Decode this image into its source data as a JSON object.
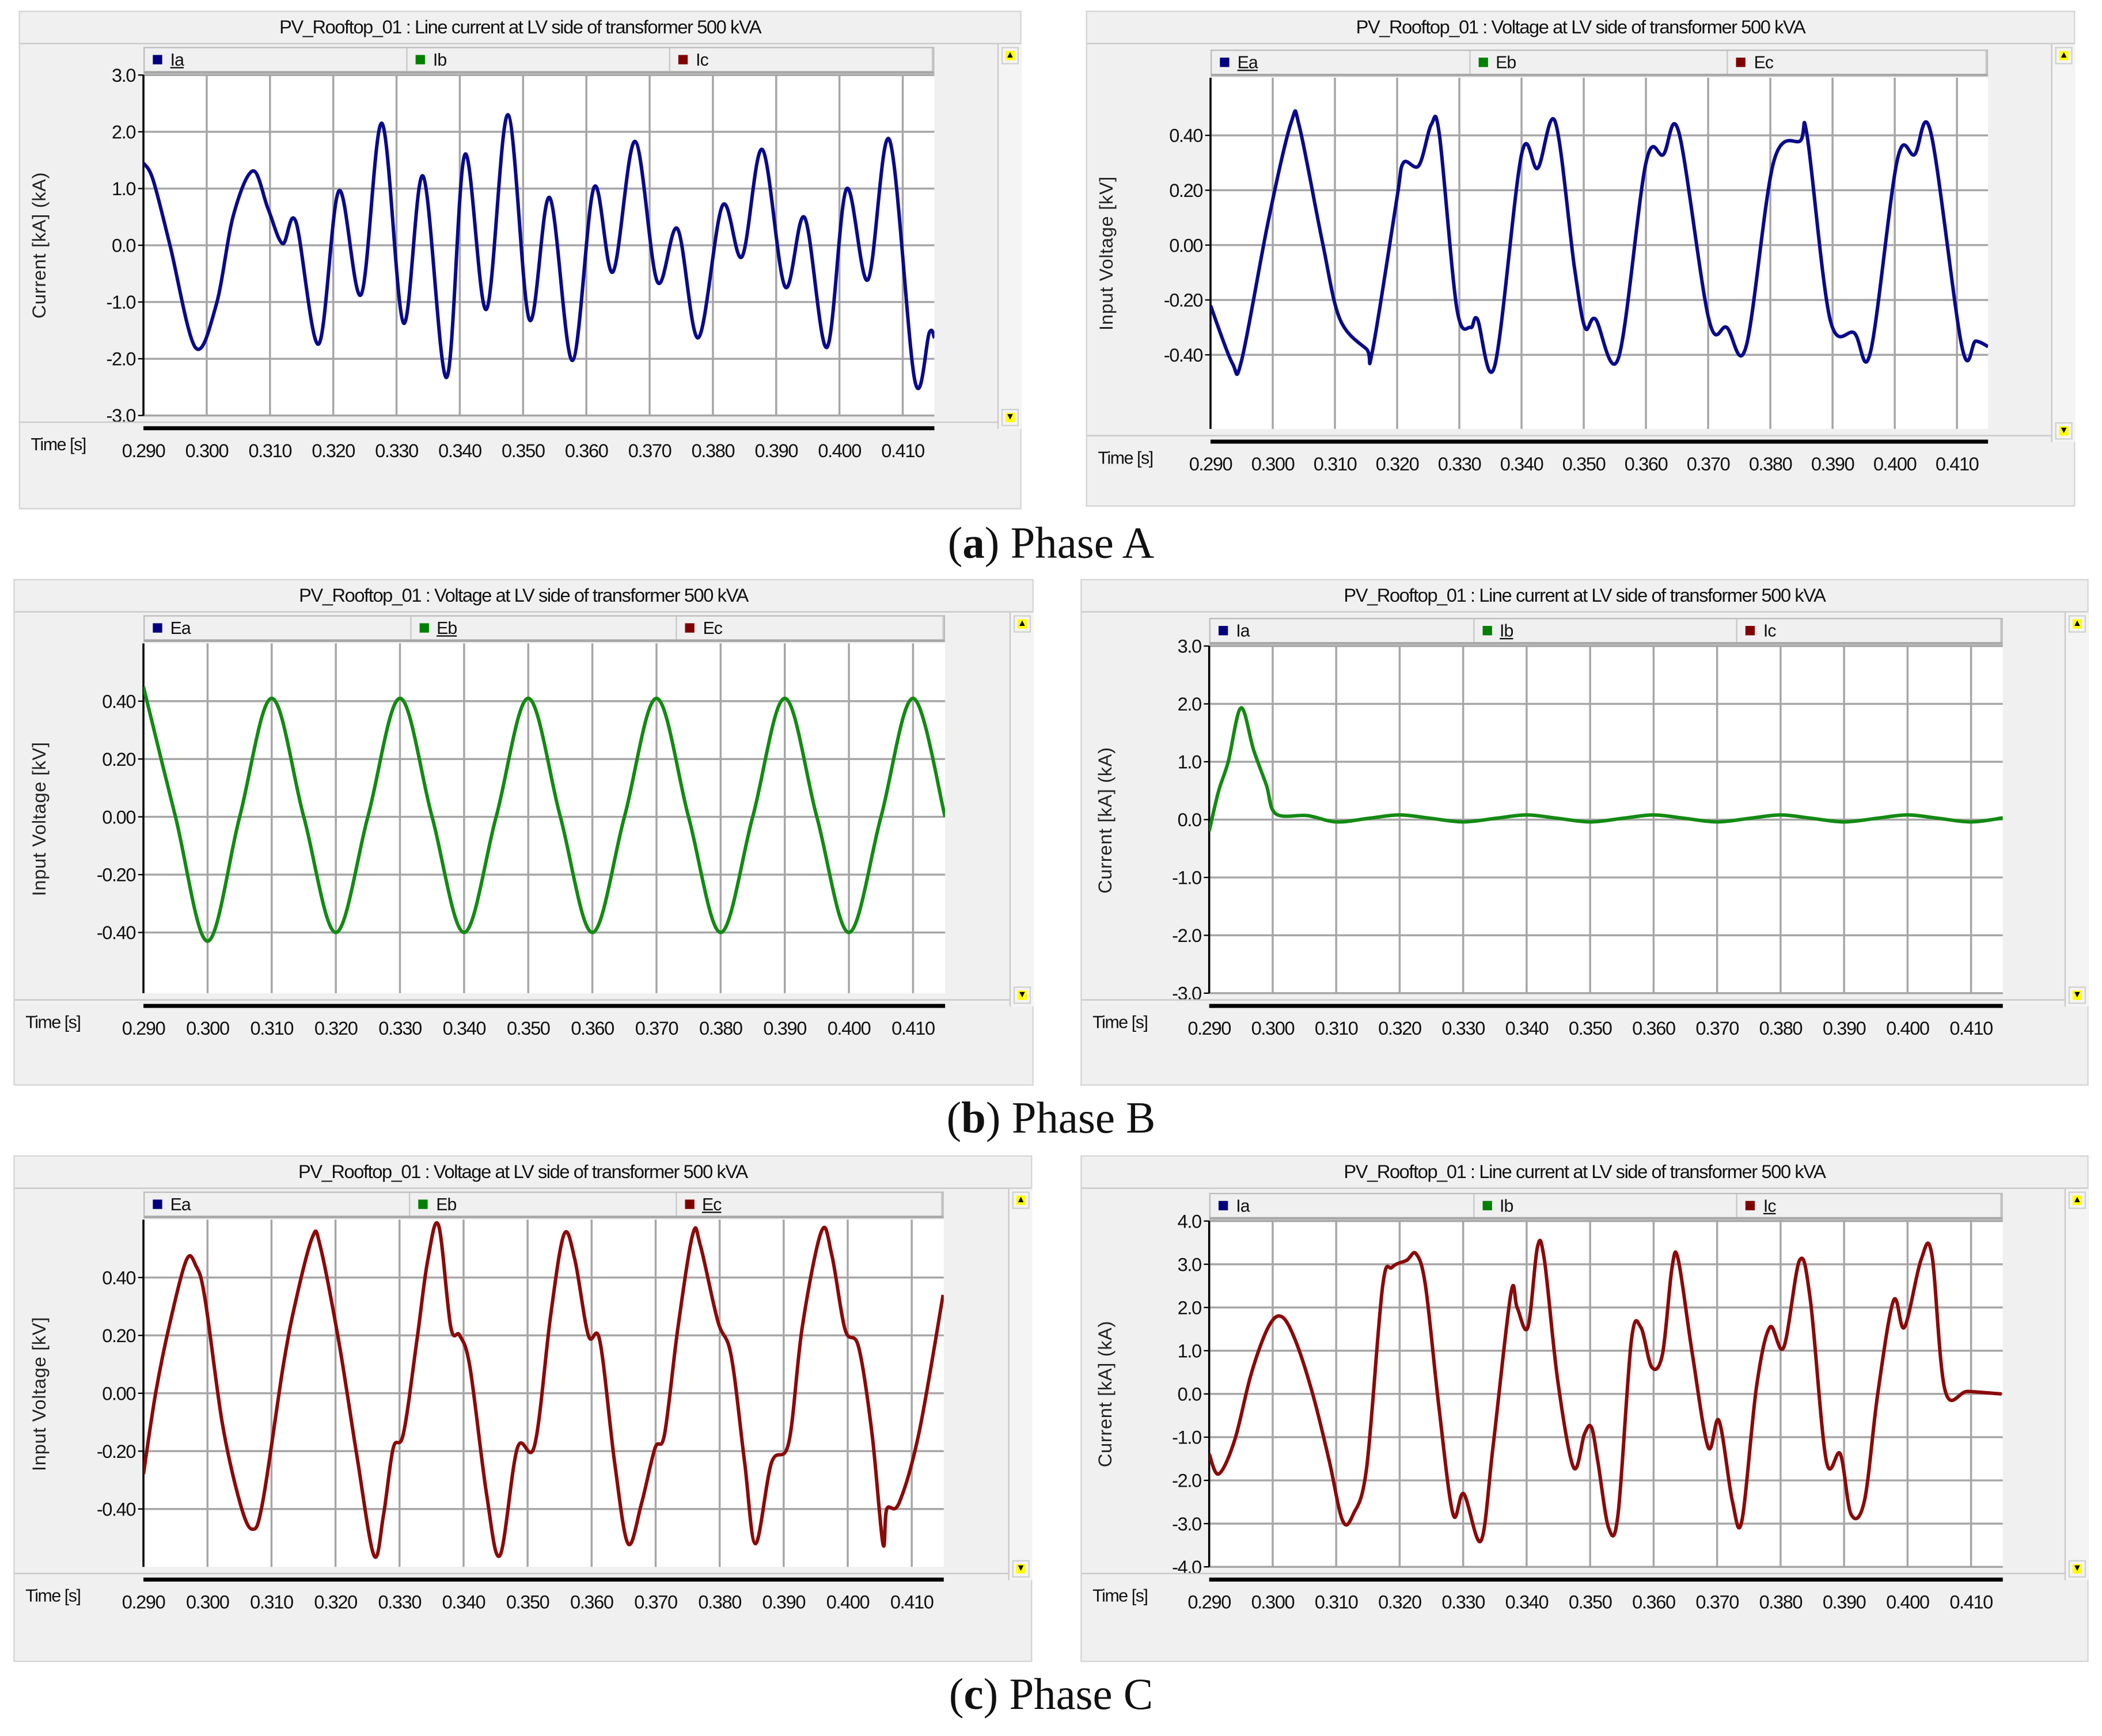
{
  "captions": [
    {
      "label": "a",
      "text": "Phase A"
    },
    {
      "label": "b",
      "text": "Phase B"
    },
    {
      "label": "c",
      "text": "Phase C"
    }
  ],
  "chart_data": [
    {
      "type": "line",
      "title": "PV_Rooftop_01 : Line current at LV side of transformer 500 kVA",
      "legend": [
        {
          "name": "Ia",
          "color": "#000080"
        },
        {
          "name": "Ib",
          "color": "#008000"
        },
        {
          "name": "Ic",
          "color": "#800000"
        }
      ],
      "active_series": 0,
      "ylabel": "Current [kA] (kA)",
      "xlabel": "Time [s]",
      "xlim": [
        0.29,
        0.415
      ],
      "ylim": [
        -3.0,
        3.0
      ],
      "xticks": [
        "0.290",
        "0.300",
        "0.310",
        "0.320",
        "0.330",
        "0.340",
        "0.350",
        "0.360",
        "0.370",
        "0.380",
        "0.390",
        "0.400",
        "0.410"
      ],
      "yticks": [
        "3.0",
        "2.0",
        "1.0",
        "0.0",
        "-1.0",
        "-2.0",
        "-3.0"
      ],
      "grid": true,
      "series": [
        {
          "name": "Ia",
          "color": "#0a0a8c",
          "x": [
            0.29,
            0.2915,
            0.2942,
            0.2982,
            0.3015,
            0.3042,
            0.3073,
            0.3097,
            0.312,
            0.3141,
            0.3177,
            0.3209,
            0.3244,
            0.3277,
            0.3311,
            0.3342,
            0.3379,
            0.3408,
            0.3442,
            0.3476,
            0.351,
            0.3542,
            0.3578,
            0.3612,
            0.3642,
            0.3677,
            0.3712,
            0.3744,
            0.3777,
            0.3815,
            0.3846,
            0.3878,
            0.3914,
            0.3945,
            0.398,
            0.4011,
            0.4045,
            0.4079,
            0.4119,
            0.4142,
            0.415
          ],
          "y": [
            1.45,
            1.16,
            0,
            -1.8,
            -1.05,
            0.52,
            1.31,
            0.64,
            0.03,
            0.41,
            -1.74,
            0.96,
            -0.87,
            2.15,
            -1.37,
            1.22,
            -2.33,
            1.6,
            -1.13,
            2.3,
            -1.31,
            0.84,
            -2.03,
            1.02,
            -0.47,
            1.83,
            -0.64,
            0.29,
            -1.63,
            0.7,
            -0.2,
            1.69,
            -0.73,
            0.49,
            -1.8,
            0.99,
            -0.61,
            1.86,
            -2.38,
            -1.54,
            -1.63
          ]
        }
      ]
    },
    {
      "type": "line",
      "title": "PV_Rooftop_01 : Voltage at LV side of transformer 500 kVA",
      "legend": [
        {
          "name": "Ea",
          "color": "#000080"
        },
        {
          "name": "Eb",
          "color": "#008000"
        },
        {
          "name": "Ec",
          "color": "#800000"
        }
      ],
      "active_series": 0,
      "ylabel": "Input Voltage [kV]",
      "xlabel": "Time [s]",
      "xlim": [
        0.29,
        0.415
      ],
      "ylim": [
        -0.67,
        0.61
      ],
      "xticks": [
        "0.290",
        "0.300",
        "0.310",
        "0.320",
        "0.330",
        "0.340",
        "0.350",
        "0.360",
        "0.370",
        "0.380",
        "0.390",
        "0.400",
        "0.410"
      ],
      "yticks": [
        "0.40",
        "0.20",
        "0.00",
        "-0.20",
        "-0.40"
      ],
      "grid": true,
      "series": [
        {
          "name": "Ea",
          "color": "#0a0a8c",
          "x": [
            0.29,
            0.2935,
            0.295,
            0.2993,
            0.303,
            0.3043,
            0.308,
            0.3108,
            0.3151,
            0.316,
            0.3199,
            0.321,
            0.3235,
            0.3255,
            0.3268,
            0.3296,
            0.3318,
            0.3329,
            0.3357,
            0.34,
            0.3426,
            0.3454,
            0.3485,
            0.3502,
            0.3519,
            0.3556,
            0.36,
            0.3628,
            0.3653,
            0.3701,
            0.373,
            0.3761,
            0.3805,
            0.3848,
            0.3859,
            0.3896,
            0.3935,
            0.3961,
            0.4004,
            0.4032,
            0.4058,
            0.4108,
            0.413,
            0.415
          ],
          "y": [
            -0.22,
            -0.43,
            -0.42,
            0.09,
            0.45,
            0.43,
            0.01,
            -0.27,
            -0.38,
            -0.39,
            0.16,
            0.3,
            0.29,
            0.44,
            0.4,
            -0.23,
            -0.3,
            -0.27,
            -0.44,
            0.33,
            0.28,
            0.45,
            -0.08,
            -0.3,
            -0.27,
            -0.41,
            0.3,
            0.33,
            0.41,
            -0.27,
            -0.3,
            -0.37,
            0.3,
            0.38,
            0.4,
            -0.27,
            -0.32,
            -0.39,
            0.31,
            0.33,
            0.41,
            -0.37,
            -0.35,
            -0.37
          ]
        }
      ]
    },
    {
      "type": "line",
      "title": "PV_Rooftop_01 : Voltage at LV side of transformer 500 kVA",
      "legend": [
        {
          "name": "Ea",
          "color": "#000080"
        },
        {
          "name": "Eb",
          "color": "#008000"
        },
        {
          "name": "Ec",
          "color": "#800000"
        }
      ],
      "active_series": 1,
      "ylabel": "Input Voltage [kV]",
      "xlabel": "Time [s]",
      "xlim": [
        0.29,
        0.415
      ],
      "ylim": [
        -0.61,
        0.6
      ],
      "xticks": [
        "0.290",
        "0.300",
        "0.310",
        "0.320",
        "0.330",
        "0.340",
        "0.350",
        "0.360",
        "0.370",
        "0.380",
        "0.390",
        "0.400",
        "0.410"
      ],
      "yticks": [
        "0.40",
        "0.20",
        "0.00",
        "-0.20",
        "-0.40"
      ],
      "grid": true,
      "series": [
        {
          "name": "Eb",
          "color": "#138a13",
          "x": [
            0.29,
            0.295,
            0.3,
            0.305,
            0.31,
            0.315,
            0.32,
            0.325,
            0.33,
            0.335,
            0.34,
            0.345,
            0.35,
            0.355,
            0.36,
            0.365,
            0.37,
            0.375,
            0.38,
            0.385,
            0.39,
            0.395,
            0.4,
            0.405,
            0.41,
            0.415
          ],
          "y": [
            0.45,
            0,
            -0.43,
            0,
            0.41,
            0,
            -0.4,
            0,
            0.41,
            0,
            -0.4,
            0,
            0.41,
            0,
            -0.4,
            0,
            0.41,
            0,
            -0.4,
            0,
            0.41,
            0,
            -0.4,
            0,
            0.41,
            0.0
          ]
        }
      ]
    },
    {
      "type": "line",
      "title": "PV_Rooftop_01 : Line current at LV side of transformer 500 kVA",
      "legend": [
        {
          "name": "Ia",
          "color": "#000080"
        },
        {
          "name": "Ib",
          "color": "#008000"
        },
        {
          "name": "Ic",
          "color": "#800000"
        }
      ],
      "active_series": 1,
      "ylabel": "Current [kA] (kA)",
      "xlabel": "Time [s]",
      "xlim": [
        0.29,
        0.415
      ],
      "ylim": [
        -3.0,
        3.0
      ],
      "xticks": [
        "0.290",
        "0.300",
        "0.310",
        "0.320",
        "0.330",
        "0.340",
        "0.350",
        "0.360",
        "0.370",
        "0.380",
        "0.390",
        "0.400",
        "0.410"
      ],
      "yticks": [
        "3.0",
        "2.0",
        "1.0",
        "0.0",
        "-1.0",
        "-2.0",
        "-3.0"
      ],
      "grid": true,
      "series": [
        {
          "name": "Ib",
          "color": "#138a13",
          "x": [
            0.29,
            0.2915,
            0.293,
            0.295,
            0.297,
            0.299,
            0.3005,
            0.3055,
            0.31,
            0.315,
            0.32,
            0.325,
            0.33,
            0.335,
            0.34,
            0.345,
            0.35,
            0.355,
            0.36,
            0.365,
            0.37,
            0.375,
            0.38,
            0.385,
            0.39,
            0.395,
            0.4,
            0.405,
            0.41,
            0.415
          ],
          "y": [
            -0.2,
            0.5,
            1.0,
            1.93,
            1.2,
            0.6,
            0.1,
            0.07,
            -0.04,
            0.02,
            0.08,
            0.02,
            -0.04,
            0.02,
            0.08,
            0.02,
            -0.04,
            0.02,
            0.08,
            0.02,
            -0.04,
            0.02,
            0.08,
            0.02,
            -0.04,
            0.02,
            0.08,
            0.02,
            -0.04,
            0.03
          ]
        }
      ]
    },
    {
      "type": "line",
      "title": "PV_Rooftop_01 : Voltage at LV side of transformer 500 kVA",
      "legend": [
        {
          "name": "Ea",
          "color": "#000080"
        },
        {
          "name": "Eb",
          "color": "#008000"
        },
        {
          "name": "Ec",
          "color": "#800000"
        }
      ],
      "active_series": 2,
      "ylabel": "Input Voltage [kV]",
      "xlabel": "Time [s]",
      "xlim": [
        0.29,
        0.415
      ],
      "ylim": [
        -0.6,
        0.6
      ],
      "xticks": [
        "0.290",
        "0.300",
        "0.310",
        "0.320",
        "0.330",
        "0.340",
        "0.350",
        "0.360",
        "0.370",
        "0.380",
        "0.390",
        "0.400",
        "0.410"
      ],
      "yticks": [
        "0.40",
        "0.20",
        "0.00",
        "-0.20",
        "-0.40"
      ],
      "grid": true,
      "series": [
        {
          "name": "Ec",
          "color": "#8b0a0a",
          "x": [
            0.29,
            0.2919,
            0.294,
            0.2967,
            0.2982,
            0.2996,
            0.3023,
            0.3051,
            0.307,
            0.3086,
            0.3118,
            0.3138,
            0.3164,
            0.3176,
            0.3205,
            0.3233,
            0.326,
            0.3275,
            0.329,
            0.3306,
            0.3327,
            0.3344,
            0.3361,
            0.338,
            0.3394,
            0.341,
            0.3436,
            0.3457,
            0.3484,
            0.3511,
            0.3536,
            0.3557,
            0.3574,
            0.3595,
            0.3613,
            0.3636,
            0.3657,
            0.3678,
            0.3699,
            0.3714,
            0.3735,
            0.3758,
            0.377,
            0.3797,
            0.3818,
            0.3839,
            0.3856,
            0.3881,
            0.3908,
            0.3929,
            0.3959,
            0.3975,
            0.3996,
            0.4017,
            0.4038,
            0.4055,
            0.4061,
            0.408,
            0.4111,
            0.4149
          ],
          "y": [
            -0.28,
            0,
            0.23,
            0.46,
            0.44,
            0.33,
            -0.1,
            -0.38,
            -0.47,
            -0.38,
            0.09,
            0.32,
            0.54,
            0.51,
            0.18,
            -0.21,
            -0.56,
            -0.42,
            -0.19,
            -0.14,
            0.18,
            0.46,
            0.58,
            0.23,
            0.2,
            0.09,
            -0.35,
            -0.56,
            -0.19,
            -0.18,
            0.27,
            0.55,
            0.46,
            0.2,
            0.18,
            -0.24,
            -0.52,
            -0.38,
            -0.19,
            -0.14,
            0.23,
            0.55,
            0.51,
            0.25,
            0.13,
            -0.24,
            -0.52,
            -0.24,
            -0.17,
            0.23,
            0.56,
            0.48,
            0.22,
            0.16,
            -0.14,
            -0.52,
            -0.4,
            -0.38,
            -0.14,
            0.34
          ]
        }
      ]
    },
    {
      "type": "line",
      "title": "PV_Rooftop_01 : Line current at LV side of transformer 500 kVA",
      "legend": [
        {
          "name": "Ia",
          "color": "#000080"
        },
        {
          "name": "Ib",
          "color": "#008000"
        },
        {
          "name": "Ic",
          "color": "#800000"
        }
      ],
      "active_series": 2,
      "ylabel": "Current [kA] (kA)",
      "xlabel": "Time [s]",
      "xlim": [
        0.29,
        0.415
      ],
      "ylim": [
        -4.0,
        4.0
      ],
      "xticks": [
        "0.290",
        "0.300",
        "0.310",
        "0.320",
        "0.330",
        "0.340",
        "0.350",
        "0.360",
        "0.370",
        "0.380",
        "0.390",
        "0.400",
        "0.410"
      ],
      "yticks": [
        "4.0",
        "3.0",
        "2.0",
        "1.0",
        "0.0",
        "-1.0",
        "-2.0",
        "-3.0",
        "-4.0"
      ],
      "grid": true,
      "series": [
        {
          "name": "Ic",
          "color": "#8b0a0a",
          "x": [
            0.29,
            0.2915,
            0.294,
            0.2966,
            0.2993,
            0.3014,
            0.3036,
            0.3063,
            0.3089,
            0.311,
            0.3127,
            0.3148,
            0.3173,
            0.3188,
            0.3211,
            0.3226,
            0.3241,
            0.3262,
            0.3284,
            0.3301,
            0.3328,
            0.3347,
            0.3375,
            0.3385,
            0.3402,
            0.3417,
            0.3428,
            0.3449,
            0.3474,
            0.3491,
            0.3502,
            0.3512,
            0.3529,
            0.3544,
            0.3565,
            0.358,
            0.3597,
            0.3614,
            0.3629,
            0.3639,
            0.3661,
            0.3686,
            0.3703,
            0.3724,
            0.3739,
            0.3762,
            0.3783,
            0.3805,
            0.383,
            0.3847,
            0.3872,
            0.3894,
            0.3911,
            0.3932,
            0.3953,
            0.3978,
            0.3995,
            0.4021,
            0.4038,
            0.4059,
            0.4095,
            0.4148
          ],
          "y": [
            -1.39,
            -1.85,
            -1.08,
            0.46,
            1.54,
            1.79,
            1.23,
            0,
            -1.54,
            -2.93,
            -2.78,
            -1.7,
            2.47,
            2.93,
            3.09,
            3.24,
            2.47,
            -0.31,
            -2.78,
            -2.31,
            -3.4,
            -1.23,
            2.31,
            2.0,
            1.54,
            3.4,
            3.09,
            0.31,
            -1.7,
            -0.93,
            -0.77,
            -1.54,
            -3.09,
            -2.78,
            1.23,
            1.54,
            0.62,
            0.93,
            2.93,
            3.09,
            0.93,
            -1.23,
            -0.62,
            -2.47,
            -2.93,
            0.15,
            1.54,
            1.08,
            3.09,
            2.16,
            -1.54,
            -1.39,
            -2.78,
            -2.47,
            0,
            2.16,
            1.54,
            3.09,
            3.24,
            0.09,
            0.06,
            0
          ]
        }
      ]
    }
  ]
}
